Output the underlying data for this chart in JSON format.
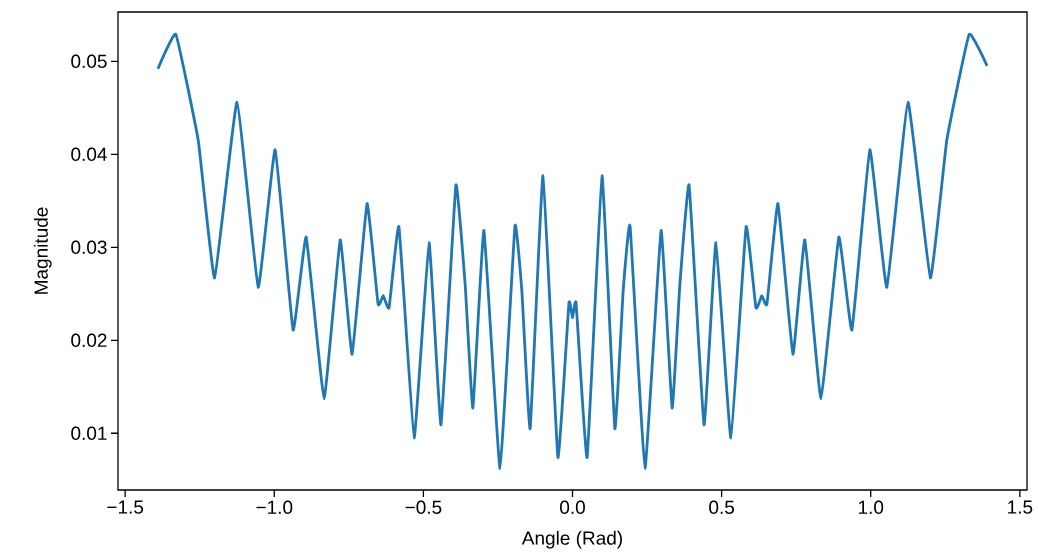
{
  "chart_data": {
    "type": "line",
    "xlabel": "Angle (Rad)",
    "ylabel": "Magnitude",
    "xlim": [
      -1.524,
      1.524
    ],
    "ylim": [
      0.0039,
      0.0553
    ],
    "xticks": [
      {
        "value": -1.5,
        "label": "−1.5"
      },
      {
        "value": -1.0,
        "label": "−1.0"
      },
      {
        "value": -0.5,
        "label": "−0.5"
      },
      {
        "value": 0.0,
        "label": "0.0"
      },
      {
        "value": 0.5,
        "label": "0.5"
      },
      {
        "value": 1.0,
        "label": "1.0"
      },
      {
        "value": 1.5,
        "label": "1.5"
      }
    ],
    "yticks": [
      0.01,
      0.02,
      0.03,
      0.04,
      0.05
    ],
    "grid": false,
    "marker": "none",
    "line_style": "solid",
    "series": [
      {
        "color": "#1f77b4",
        "x": [
          -1.39,
          -1.33,
          -1.255,
          -1.2,
          -1.125,
          -1.054,
          -0.997,
          -0.937,
          -0.893,
          -0.833,
          -0.779,
          -0.739,
          -0.689,
          -0.652,
          -0.635,
          -0.615,
          -0.582,
          -0.531,
          -0.481,
          -0.441,
          -0.391,
          -0.36,
          -0.334,
          -0.297,
          -0.243,
          -0.193,
          -0.17,
          -0.142,
          -0.099,
          -0.049,
          -0.012,
          0.0,
          0.012,
          0.049,
          0.099,
          0.142,
          0.17,
          0.193,
          0.243,
          0.297,
          0.334,
          0.36,
          0.391,
          0.441,
          0.481,
          0.531,
          0.582,
          0.615,
          0.635,
          0.652,
          0.689,
          0.739,
          0.779,
          0.833,
          0.893,
          0.937,
          0.997,
          1.054,
          1.125,
          1.2,
          1.255,
          1.33,
          1.39
        ],
        "values": [
          0.0492,
          0.0529,
          0.0415,
          0.0267,
          0.0456,
          0.0257,
          0.0405,
          0.0211,
          0.0311,
          0.0137,
          0.0308,
          0.0185,
          0.0347,
          0.0239,
          0.0248,
          0.0235,
          0.0322,
          0.0095,
          0.0305,
          0.0109,
          0.0367,
          0.026,
          0.0127,
          0.0318,
          0.0062,
          0.0323,
          0.0254,
          0.0105,
          0.0377,
          0.0074,
          0.024,
          0.0224,
          0.024,
          0.0074,
          0.0377,
          0.0105,
          0.0254,
          0.0323,
          0.0062,
          0.0318,
          0.0127,
          0.026,
          0.0367,
          0.0109,
          0.0305,
          0.0095,
          0.0322,
          0.0235,
          0.0248,
          0.0239,
          0.0347,
          0.0185,
          0.0308,
          0.0137,
          0.0311,
          0.0211,
          0.0405,
          0.0257,
          0.0456,
          0.0267,
          0.0415,
          0.0529,
          0.0495
        ]
      }
    ]
  }
}
